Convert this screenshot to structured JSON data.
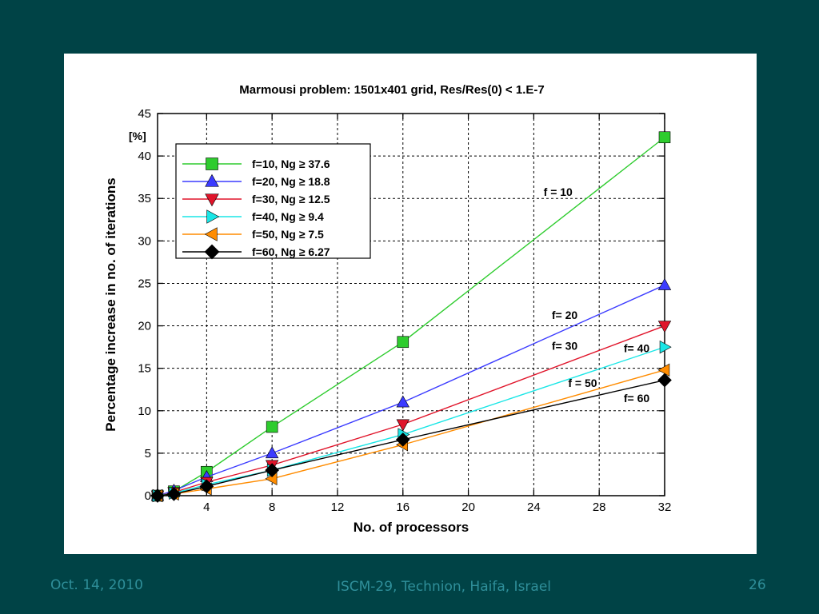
{
  "slide": {
    "footer_date": "Oct. 14, 2010",
    "footer_venue": "ISCM-29, Technion, Haifa, Israel",
    "page_number": "26",
    "background_color": "#004346",
    "footer_color": "#2f8f9a"
  },
  "chart_data": {
    "type": "line",
    "title": "Marmousi problem: 1501x401 grid, Res/Res(0) < 1.E-7",
    "xlabel": "No. of processors",
    "ylabel": "Percentage increase in no. of iterations",
    "yunit": "[%]",
    "xlim": [
      1,
      32
    ],
    "ylim": [
      0,
      45
    ],
    "xticks": [
      4,
      8,
      12,
      16,
      20,
      24,
      28,
      32
    ],
    "yticks": [
      0,
      5,
      10,
      15,
      20,
      25,
      30,
      35,
      40,
      45
    ],
    "grid": true,
    "legend_position": "top-left",
    "series": [
      {
        "name": "f=10, Ng ≥ 37.6",
        "color": "#2ecc2e",
        "marker": "square",
        "x": [
          1,
          2,
          4,
          8,
          16,
          32
        ],
        "y": [
          0,
          0.5,
          2.8,
          8.1,
          18.1,
          42.2
        ]
      },
      {
        "name": "f=20, Ng ≥ 18.8",
        "color": "#3b3bff",
        "marker": "triangle-up",
        "x": [
          1,
          2,
          4,
          8,
          16,
          32
        ],
        "y": [
          0,
          0.6,
          2.2,
          5.0,
          11.0,
          24.8
        ]
      },
      {
        "name": "f=30, Ng ≥ 12.5",
        "color": "#e0142a",
        "marker": "triangle-down",
        "x": [
          1,
          2,
          4,
          8,
          16,
          32
        ],
        "y": [
          0,
          0.4,
          1.6,
          3.6,
          8.4,
          20.0
        ]
      },
      {
        "name": "f=40, Ng ≥  9.4",
        "color": "#19e6e6",
        "marker": "triangle-right",
        "x": [
          1,
          2,
          4,
          8,
          16,
          32
        ],
        "y": [
          0,
          0.3,
          1.3,
          3.0,
          7.2,
          17.5
        ]
      },
      {
        "name": "f=50, Ng ≥  7.5",
        "color": "#ff8c00",
        "marker": "triangle-left",
        "x": [
          1,
          2,
          4,
          8,
          16,
          32
        ],
        "y": [
          0,
          0.2,
          0.8,
          2.0,
          6.0,
          14.8
        ]
      },
      {
        "name": "f=60, Ng ≥ 6.27",
        "color": "#000000",
        "marker": "diamond",
        "x": [
          1,
          2,
          4,
          8,
          16,
          32
        ],
        "y": [
          0,
          0.2,
          1.1,
          3.0,
          6.6,
          13.6
        ]
      }
    ],
    "annotations": [
      {
        "text": "f = 10",
        "x": 24.6,
        "y": 35.3
      },
      {
        "text": "f= 20",
        "x": 25.1,
        "y": 20.8
      },
      {
        "text": "f= 30",
        "x": 25.1,
        "y": 17.2
      },
      {
        "text": "f= 40",
        "x": 29.5,
        "y": 16.9
      },
      {
        "text": "f = 50",
        "x": 26.1,
        "y": 12.8
      },
      {
        "text": "f= 60",
        "x": 29.5,
        "y": 11.0
      }
    ]
  }
}
